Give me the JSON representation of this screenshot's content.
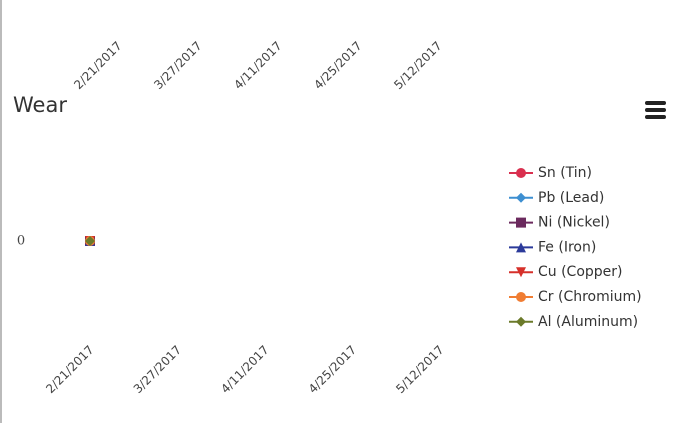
{
  "chart_data": {
    "type": "line",
    "title": "Wear",
    "categories": [
      "2/21/2017",
      "3/27/2017",
      "4/11/2017",
      "4/25/2017",
      "5/12/2017"
    ],
    "series": [
      {
        "name": "Sn (Tin)",
        "color": "#d9304f",
        "values": [
          0,
          null,
          null,
          null,
          null
        ]
      },
      {
        "name": "Pb (Lead)",
        "color": "#3d8fd1",
        "values": [
          0,
          null,
          null,
          null,
          null
        ]
      },
      {
        "name": "Ni (Nickel)",
        "color": "#6b2a5e",
        "values": [
          0,
          null,
          null,
          null,
          null
        ]
      },
      {
        "name": "Fe (Iron)",
        "color": "#2b3a9a",
        "values": [
          0,
          null,
          null,
          null,
          null
        ]
      },
      {
        "name": "Cu (Copper)",
        "color": "#d6302a",
        "values": [
          0,
          null,
          null,
          null,
          null
        ]
      },
      {
        "name": "Cr (Chromium)",
        "color": "#f07d33",
        "values": [
          0,
          null,
          null,
          null,
          null
        ]
      },
      {
        "name": "Al (Aluminum)",
        "color": "#6b7a2a",
        "values": [
          0,
          null,
          null,
          null,
          null
        ]
      }
    ],
    "ylim": [
      -1,
      1
    ],
    "yticks": [
      0
    ]
  }
}
